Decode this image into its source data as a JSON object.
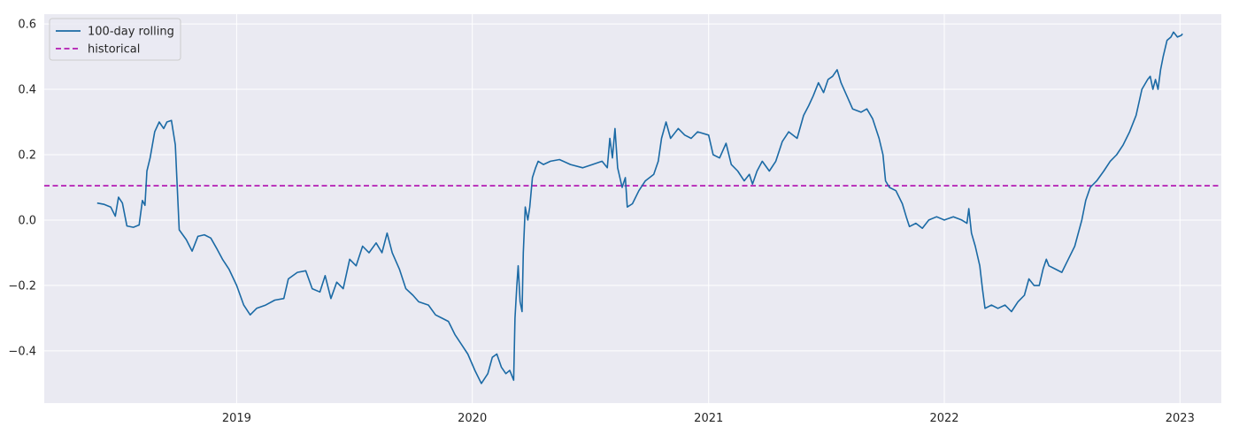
{
  "chart_data": {
    "type": "line",
    "title": "",
    "xlabel": "",
    "ylabel": "",
    "xlim": [
      "2018-03-09",
      "2023-03-06"
    ],
    "ylim": [
      -0.56,
      0.63
    ],
    "grid": true,
    "legend_position": "top-left",
    "x_ticks": [
      "2019-01-01",
      "2020-01-01",
      "2021-01-01",
      "2022-01-01",
      "2023-01-01"
    ],
    "x_tick_labels": [
      "2019",
      "2020",
      "2021",
      "2022",
      "2023"
    ],
    "y_ticks": [
      -0.4,
      -0.2,
      0.0,
      0.2,
      0.4,
      0.6
    ],
    "y_tick_labels": [
      "−0.4",
      "−0.2",
      "0.0",
      "0.2",
      "0.4",
      "0.6"
    ],
    "colors": {
      "plot_background": "#eaeaf2",
      "grid": "#ffffff",
      "rolling": "#1b6aa5",
      "historical": "#b31bb3"
    },
    "series": [
      {
        "name": "100-day rolling",
        "style": "solid",
        "points": [
          [
            "2018-05-30",
            0.052
          ],
          [
            "2018-06-10",
            0.048
          ],
          [
            "2018-06-20",
            0.04
          ],
          [
            "2018-06-27",
            0.012
          ],
          [
            "2018-07-02",
            0.07
          ],
          [
            "2018-07-08",
            0.052
          ],
          [
            "2018-07-15",
            -0.018
          ],
          [
            "2018-07-25",
            -0.022
          ],
          [
            "2018-08-03",
            -0.015
          ],
          [
            "2018-08-08",
            0.06
          ],
          [
            "2018-08-12",
            0.045
          ],
          [
            "2018-08-15",
            0.15
          ],
          [
            "2018-08-20",
            0.19
          ],
          [
            "2018-08-27",
            0.27
          ],
          [
            "2018-09-03",
            0.3
          ],
          [
            "2018-09-10",
            0.28
          ],
          [
            "2018-09-15",
            0.3
          ],
          [
            "2018-09-22",
            0.305
          ],
          [
            "2018-09-28",
            0.23
          ],
          [
            "2018-10-01",
            0.1
          ],
          [
            "2018-10-04",
            -0.03
          ],
          [
            "2018-10-15",
            -0.06
          ],
          [
            "2018-10-24",
            -0.095
          ],
          [
            "2018-11-02",
            -0.05
          ],
          [
            "2018-11-12",
            -0.045
          ],
          [
            "2018-11-22",
            -0.055
          ],
          [
            "2018-12-02",
            -0.09
          ],
          [
            "2018-12-10",
            -0.12
          ],
          [
            "2018-12-20",
            -0.15
          ],
          [
            "2019-01-01",
            -0.2
          ],
          [
            "2019-01-12",
            -0.26
          ],
          [
            "2019-01-22",
            -0.29
          ],
          [
            "2019-02-01",
            -0.27
          ],
          [
            "2019-02-15",
            -0.26
          ],
          [
            "2019-03-01",
            -0.245
          ],
          [
            "2019-03-15",
            -0.24
          ],
          [
            "2019-03-22",
            -0.18
          ],
          [
            "2019-04-05",
            -0.16
          ],
          [
            "2019-04-18",
            -0.155
          ],
          [
            "2019-04-28",
            -0.21
          ],
          [
            "2019-05-10",
            -0.22
          ],
          [
            "2019-05-18",
            -0.17
          ],
          [
            "2019-05-27",
            -0.24
          ],
          [
            "2019-06-05",
            -0.19
          ],
          [
            "2019-06-15",
            -0.21
          ],
          [
            "2019-06-25",
            -0.12
          ],
          [
            "2019-07-05",
            -0.14
          ],
          [
            "2019-07-15",
            -0.08
          ],
          [
            "2019-07-25",
            -0.1
          ],
          [
            "2019-08-05",
            -0.07
          ],
          [
            "2019-08-14",
            -0.1
          ],
          [
            "2019-08-22",
            -0.04
          ],
          [
            "2019-08-30",
            -0.1
          ],
          [
            "2019-09-10",
            -0.15
          ],
          [
            "2019-09-20",
            -0.21
          ],
          [
            "2019-10-01",
            -0.23
          ],
          [
            "2019-10-10",
            -0.25
          ],
          [
            "2019-10-25",
            -0.26
          ],
          [
            "2019-11-05",
            -0.29
          ],
          [
            "2019-11-15",
            -0.3
          ],
          [
            "2019-11-25",
            -0.31
          ],
          [
            "2019-12-05",
            -0.35
          ],
          [
            "2019-12-15",
            -0.38
          ],
          [
            "2019-12-25",
            -0.41
          ],
          [
            "2020-01-05",
            -0.46
          ],
          [
            "2020-01-15",
            -0.5
          ],
          [
            "2020-01-25",
            -0.47
          ],
          [
            "2020-02-01",
            -0.42
          ],
          [
            "2020-02-08",
            -0.41
          ],
          [
            "2020-02-15",
            -0.45
          ],
          [
            "2020-02-22",
            -0.47
          ],
          [
            "2020-02-28",
            -0.46
          ],
          [
            "2020-03-05",
            -0.49
          ],
          [
            "2020-03-07",
            -0.3
          ],
          [
            "2020-03-10",
            -0.2
          ],
          [
            "2020-03-12",
            -0.14
          ],
          [
            "2020-03-15",
            -0.25
          ],
          [
            "2020-03-18",
            -0.28
          ],
          [
            "2020-03-20",
            -0.1
          ],
          [
            "2020-03-23",
            0.04
          ],
          [
            "2020-03-27",
            0.0
          ],
          [
            "2020-03-30",
            0.04
          ],
          [
            "2020-04-03",
            0.13
          ],
          [
            "2020-04-08",
            0.16
          ],
          [
            "2020-04-12",
            0.18
          ],
          [
            "2020-04-20",
            0.17
          ],
          [
            "2020-05-01",
            0.18
          ],
          [
            "2020-05-15",
            0.185
          ],
          [
            "2020-06-01",
            0.17
          ],
          [
            "2020-06-20",
            0.16
          ],
          [
            "2020-07-05",
            0.17
          ],
          [
            "2020-07-20",
            0.18
          ],
          [
            "2020-07-28",
            0.16
          ],
          [
            "2020-08-01",
            0.25
          ],
          [
            "2020-08-05",
            0.19
          ],
          [
            "2020-08-09",
            0.28
          ],
          [
            "2020-08-13",
            0.16
          ],
          [
            "2020-08-20",
            0.1
          ],
          [
            "2020-08-25",
            0.13
          ],
          [
            "2020-08-28",
            0.04
          ],
          [
            "2020-09-05",
            0.05
          ],
          [
            "2020-09-15",
            0.09
          ],
          [
            "2020-09-25",
            0.12
          ],
          [
            "2020-10-08",
            0.14
          ],
          [
            "2020-10-15",
            0.18
          ],
          [
            "2020-10-20",
            0.25
          ],
          [
            "2020-10-27",
            0.3
          ],
          [
            "2020-11-03",
            0.25
          ],
          [
            "2020-11-15",
            0.28
          ],
          [
            "2020-11-25",
            0.26
          ],
          [
            "2020-12-05",
            0.25
          ],
          [
            "2020-12-15",
            0.27
          ],
          [
            "2021-01-01",
            0.26
          ],
          [
            "2021-01-08",
            0.2
          ],
          [
            "2021-01-18",
            0.19
          ],
          [
            "2021-01-28",
            0.235
          ],
          [
            "2021-02-05",
            0.17
          ],
          [
            "2021-02-15",
            0.15
          ],
          [
            "2021-02-25",
            0.12
          ],
          [
            "2021-03-05",
            0.14
          ],
          [
            "2021-03-10",
            0.11
          ],
          [
            "2021-03-17",
            0.15
          ],
          [
            "2021-03-25",
            0.18
          ],
          [
            "2021-04-05",
            0.15
          ],
          [
            "2021-04-15",
            0.18
          ],
          [
            "2021-04-25",
            0.24
          ],
          [
            "2021-05-05",
            0.27
          ],
          [
            "2021-05-18",
            0.25
          ],
          [
            "2021-05-28",
            0.32
          ],
          [
            "2021-06-05",
            0.35
          ],
          [
            "2021-06-12",
            0.38
          ],
          [
            "2021-06-20",
            0.42
          ],
          [
            "2021-06-28",
            0.39
          ],
          [
            "2021-07-05",
            0.43
          ],
          [
            "2021-07-12",
            0.44
          ],
          [
            "2021-07-19",
            0.46
          ],
          [
            "2021-07-25",
            0.42
          ],
          [
            "2021-08-03",
            0.38
          ],
          [
            "2021-08-12",
            0.34
          ],
          [
            "2021-08-25",
            0.33
          ],
          [
            "2021-09-03",
            0.34
          ],
          [
            "2021-09-12",
            0.31
          ],
          [
            "2021-09-22",
            0.25
          ],
          [
            "2021-09-28",
            0.2
          ],
          [
            "2021-10-02",
            0.12
          ],
          [
            "2021-10-08",
            0.1
          ],
          [
            "2021-10-18",
            0.09
          ],
          [
            "2021-10-28",
            0.05
          ],
          [
            "2021-11-03",
            0.01
          ],
          [
            "2021-11-08",
            -0.02
          ],
          [
            "2021-11-18",
            -0.01
          ],
          [
            "2021-11-28",
            -0.025
          ],
          [
            "2021-12-08",
            0.0
          ],
          [
            "2021-12-20",
            0.01
          ],
          [
            "2022-01-01",
            0.0
          ],
          [
            "2022-01-15",
            0.01
          ],
          [
            "2022-01-28",
            0.0
          ],
          [
            "2022-02-05",
            -0.01
          ],
          [
            "2022-02-08",
            0.035
          ],
          [
            "2022-02-12",
            -0.04
          ],
          [
            "2022-02-18",
            -0.08
          ],
          [
            "2022-02-25",
            -0.14
          ],
          [
            "2022-03-01",
            -0.21
          ],
          [
            "2022-03-05",
            -0.27
          ],
          [
            "2022-03-15",
            -0.26
          ],
          [
            "2022-03-25",
            -0.27
          ],
          [
            "2022-04-05",
            -0.26
          ],
          [
            "2022-04-15",
            -0.28
          ],
          [
            "2022-04-25",
            -0.25
          ],
          [
            "2022-05-05",
            -0.23
          ],
          [
            "2022-05-12",
            -0.18
          ],
          [
            "2022-05-20",
            -0.2
          ],
          [
            "2022-05-28",
            -0.2
          ],
          [
            "2022-06-03",
            -0.15
          ],
          [
            "2022-06-08",
            -0.12
          ],
          [
            "2022-06-12",
            -0.14
          ],
          [
            "2022-06-22",
            -0.15
          ],
          [
            "2022-07-02",
            -0.16
          ],
          [
            "2022-07-12",
            -0.12
          ],
          [
            "2022-07-22",
            -0.08
          ],
          [
            "2022-08-02",
            0.0
          ],
          [
            "2022-08-08",
            0.06
          ],
          [
            "2022-08-15",
            0.1
          ],
          [
            "2022-08-25",
            0.12
          ],
          [
            "2022-09-05",
            0.15
          ],
          [
            "2022-09-15",
            0.18
          ],
          [
            "2022-09-25",
            0.2
          ],
          [
            "2022-10-05",
            0.23
          ],
          [
            "2022-10-15",
            0.27
          ],
          [
            "2022-10-25",
            0.32
          ],
          [
            "2022-11-03",
            0.4
          ],
          [
            "2022-11-12",
            0.43
          ],
          [
            "2022-11-16",
            0.44
          ],
          [
            "2022-11-20",
            0.4
          ],
          [
            "2022-11-24",
            0.43
          ],
          [
            "2022-11-28",
            0.4
          ],
          [
            "2022-12-02",
            0.46
          ],
          [
            "2022-12-06",
            0.5
          ],
          [
            "2022-12-12",
            0.55
          ],
          [
            "2022-12-18",
            0.56
          ],
          [
            "2022-12-22",
            0.575
          ],
          [
            "2022-12-28",
            0.56
          ],
          [
            "2023-01-03",
            0.565
          ],
          [
            "2023-01-05",
            0.57
          ]
        ]
      },
      {
        "name": "historical",
        "style": "dashed",
        "value": 0.105
      }
    ]
  }
}
